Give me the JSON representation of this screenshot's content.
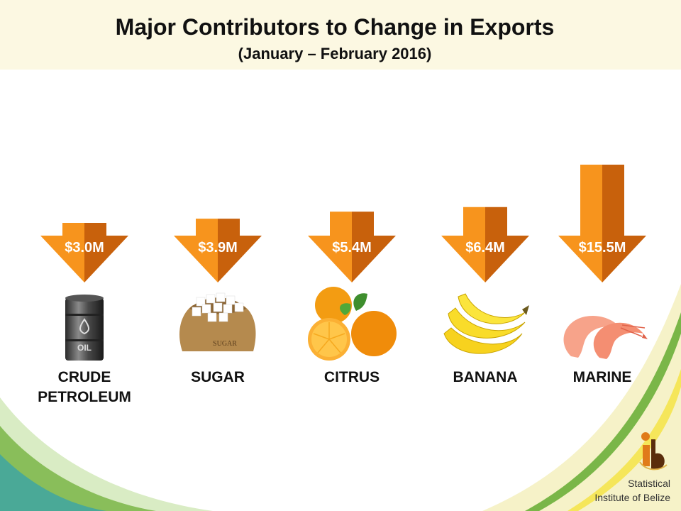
{
  "slide": {
    "title": "Major Contributors to Change in Exports",
    "subtitle": "(January – February 2016)"
  },
  "contributors": [
    {
      "label_line1": "CRUDE",
      "label_line2": "PETROLEUM",
      "amount_label": "$3.0M",
      "amount_millions": 3.0,
      "icon": "oil-barrel-icon"
    },
    {
      "label_line1": "SUGAR",
      "label_line2": "",
      "amount_label": "$3.9M",
      "amount_millions": 3.9,
      "icon": "sugar-sack-icon"
    },
    {
      "label_line1": "CITRUS",
      "label_line2": "",
      "amount_label": "$5.4M",
      "amount_millions": 5.4,
      "icon": "orange-icon"
    },
    {
      "label_line1": "BANANA",
      "label_line2": "",
      "amount_label": "$6.4M",
      "amount_millions": 6.4,
      "icon": "banana-icon"
    },
    {
      "label_line1": "MARINE",
      "label_line2": "",
      "amount_label": "$15.5M",
      "amount_millions": 15.5,
      "icon": "shrimp-icon"
    }
  ],
  "barrel_text": "OIL",
  "sack_text": "SUGAR",
  "logo": {
    "line1": "Statistical",
    "line2": "Institute of Belize",
    "icon": "sib-logo-icon"
  },
  "colors": {
    "arrow_light": "#f7941d",
    "arrow_dark": "#c8610c",
    "header_band": "#fcf8e2",
    "swoosh_green": "#7ab648",
    "swoosh_yellow": "#f5e65a"
  }
}
